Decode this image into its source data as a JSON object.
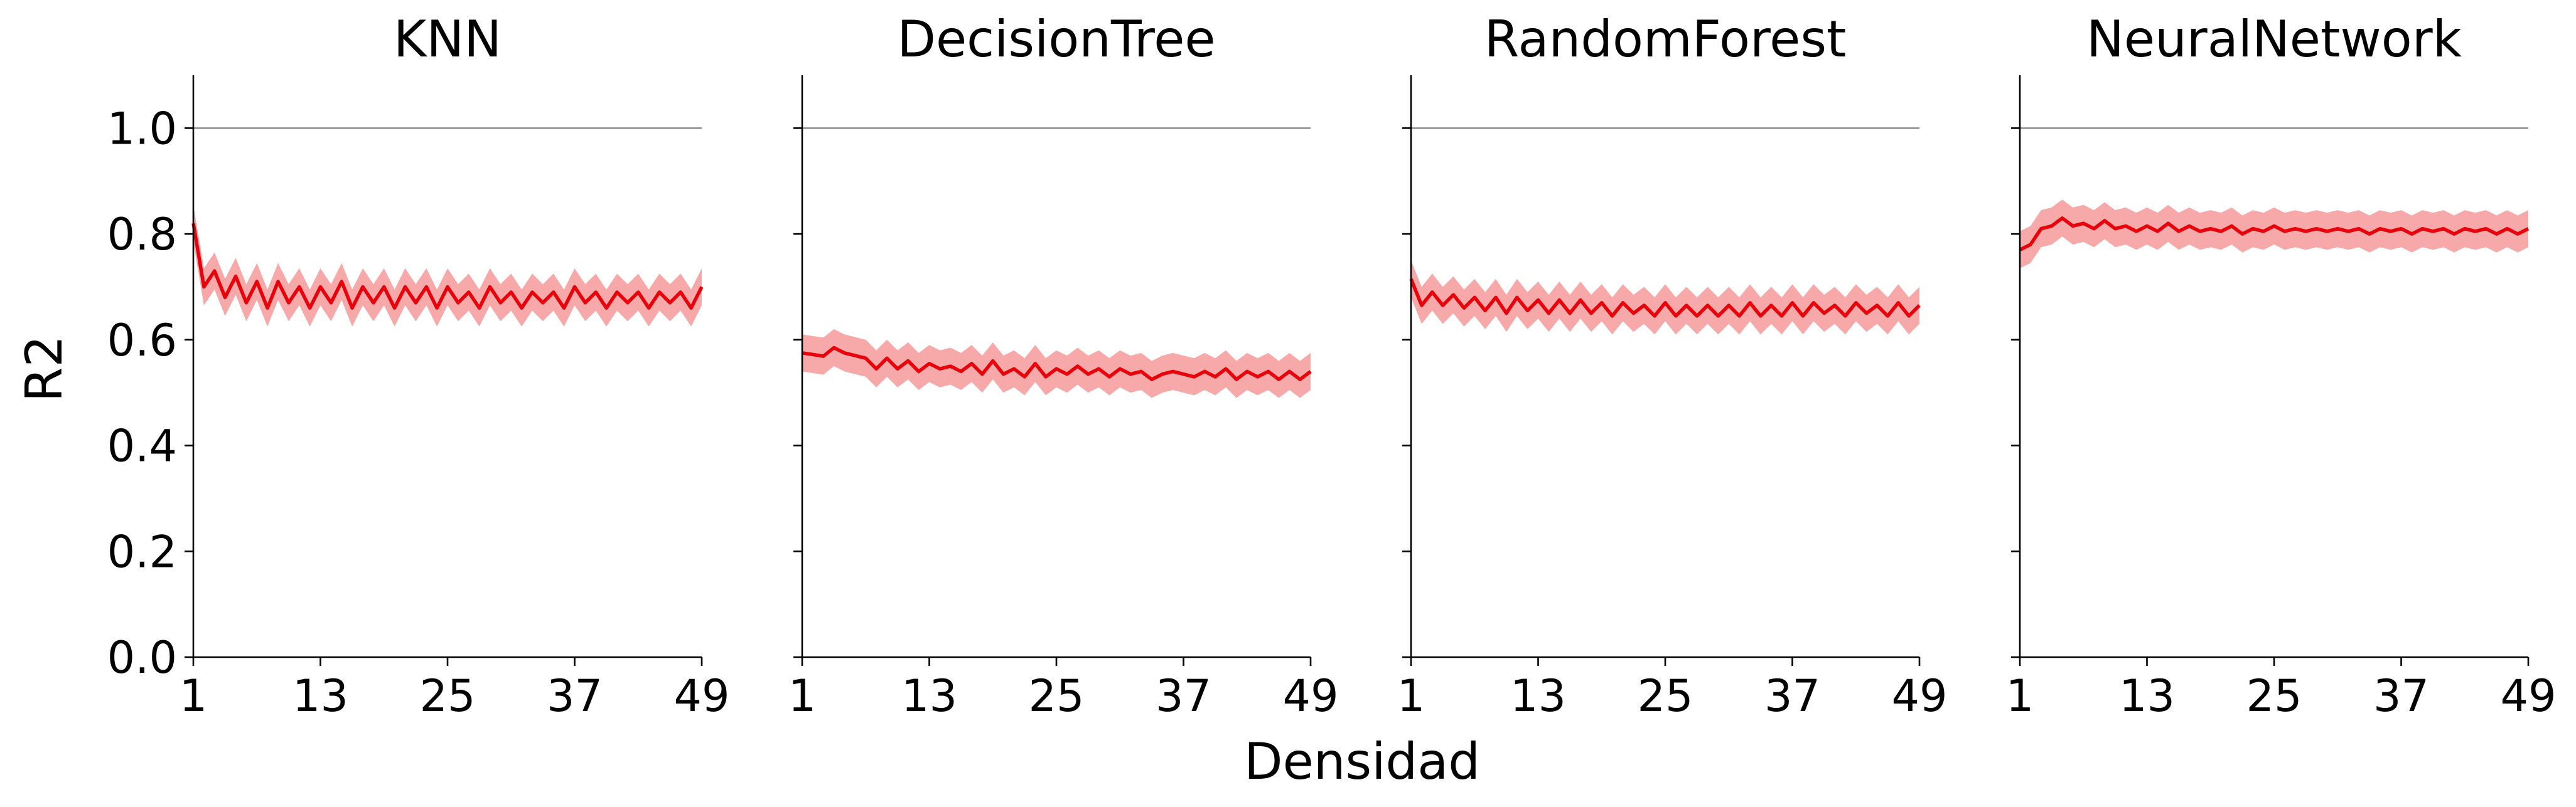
{
  "chart_data": {
    "type": "line",
    "xlabel": "Densidad",
    "ylabel": "R2",
    "ylim": [
      0.0,
      1.1
    ],
    "xlim": [
      1,
      49
    ],
    "x_ticks": [
      "1",
      "13",
      "25",
      "37",
      "49"
    ],
    "y_ticks": [
      "0.0",
      "0.2",
      "0.4",
      "0.6",
      "0.8",
      "1.0"
    ],
    "reference_line": 1.0,
    "line_color": "#e8000b",
    "band_color": "#f7a8a8",
    "reference_color": "#8c8c8c",
    "panels": [
      {
        "title": "KNN",
        "mean": [
          0.82,
          0.7,
          0.73,
          0.68,
          0.72,
          0.67,
          0.71,
          0.66,
          0.71,
          0.67,
          0.7,
          0.66,
          0.7,
          0.67,
          0.71,
          0.66,
          0.7,
          0.67,
          0.7,
          0.66,
          0.7,
          0.67,
          0.7,
          0.66,
          0.7,
          0.67,
          0.69,
          0.66,
          0.7,
          0.67,
          0.69,
          0.66,
          0.69,
          0.67,
          0.69,
          0.66,
          0.7,
          0.67,
          0.69,
          0.66,
          0.69,
          0.67,
          0.69,
          0.66,
          0.69,
          0.67,
          0.69,
          0.66,
          0.7
        ],
        "band": 0.035
      },
      {
        "title": "DecisionTree",
        "mean": [
          0.575,
          0.572,
          0.569,
          0.585,
          0.575,
          0.57,
          0.565,
          0.545,
          0.565,
          0.545,
          0.56,
          0.54,
          0.555,
          0.545,
          0.55,
          0.54,
          0.555,
          0.535,
          0.56,
          0.535,
          0.545,
          0.53,
          0.555,
          0.53,
          0.545,
          0.535,
          0.55,
          0.535,
          0.545,
          0.53,
          0.545,
          0.535,
          0.54,
          0.525,
          0.535,
          0.54,
          0.535,
          0.53,
          0.54,
          0.53,
          0.545,
          0.525,
          0.54,
          0.53,
          0.54,
          0.525,
          0.54,
          0.525,
          0.54
        ],
        "band": 0.035
      },
      {
        "title": "RandomForest",
        "mean": [
          0.715,
          0.665,
          0.69,
          0.665,
          0.685,
          0.66,
          0.68,
          0.655,
          0.68,
          0.65,
          0.68,
          0.655,
          0.675,
          0.65,
          0.675,
          0.65,
          0.675,
          0.65,
          0.67,
          0.645,
          0.67,
          0.65,
          0.665,
          0.645,
          0.67,
          0.645,
          0.665,
          0.645,
          0.665,
          0.645,
          0.665,
          0.645,
          0.67,
          0.645,
          0.665,
          0.645,
          0.67,
          0.645,
          0.67,
          0.65,
          0.665,
          0.645,
          0.67,
          0.65,
          0.665,
          0.645,
          0.67,
          0.645,
          0.665
        ],
        "band": 0.035
      },
      {
        "title": "NeuralNetwork",
        "mean": [
          0.77,
          0.78,
          0.81,
          0.815,
          0.83,
          0.815,
          0.82,
          0.81,
          0.825,
          0.81,
          0.815,
          0.805,
          0.815,
          0.805,
          0.82,
          0.805,
          0.815,
          0.805,
          0.81,
          0.805,
          0.815,
          0.8,
          0.81,
          0.805,
          0.815,
          0.805,
          0.81,
          0.805,
          0.81,
          0.805,
          0.81,
          0.805,
          0.81,
          0.8,
          0.81,
          0.805,
          0.81,
          0.8,
          0.81,
          0.805,
          0.81,
          0.8,
          0.81,
          0.805,
          0.81,
          0.8,
          0.81,
          0.8,
          0.81
        ],
        "band": 0.035
      }
    ]
  }
}
